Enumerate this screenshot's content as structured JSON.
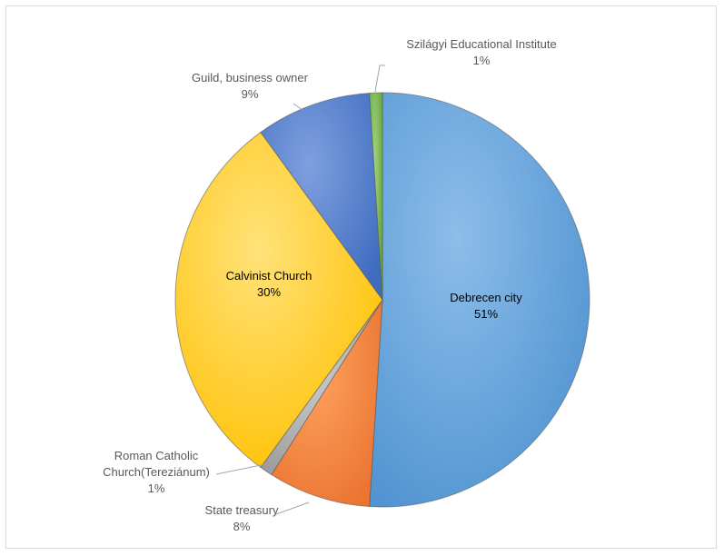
{
  "chart_data": {
    "type": "pie",
    "slices": [
      {
        "name": "Debrecen city",
        "percent_label": "51%",
        "value": 51,
        "color": "#5b9bd5"
      },
      {
        "name": "State treasury",
        "percent_label": "8%",
        "value": 8,
        "color": "#ed7d31"
      },
      {
        "name": "Roman Catholic Church(Tereziánum)",
        "percent_label": "1%",
        "value": 1,
        "color": "#a5a5a5"
      },
      {
        "name": "Calvinist Church",
        "percent_label": "30%",
        "value": 30,
        "color": "#ffc000"
      },
      {
        "name": "Guild, business owner",
        "percent_label": "9%",
        "value": 9,
        "color": "#4472c4"
      },
      {
        "name": "Szilágyi Educational Institute",
        "percent_label": "1%",
        "value": 1,
        "color": "#70ad47"
      }
    ],
    "labels": {
      "debrecen": {
        "line1": "Debrecen city",
        "line2": "51%"
      },
      "state": {
        "line1": "State treasury",
        "line2": "8%"
      },
      "roman": {
        "line1": "Roman Catholic",
        "line2": "Church(Tereziánum)",
        "line3": "1%"
      },
      "calvinist": {
        "line1": "Calvinist Church",
        "line2": "30%"
      },
      "guild": {
        "line1": "Guild, business owner",
        "line2": "9%"
      },
      "szilagyi": {
        "line1": "Szilágyi Educational Institute",
        "line2": "1%"
      }
    },
    "legend": "none",
    "title": ""
  }
}
